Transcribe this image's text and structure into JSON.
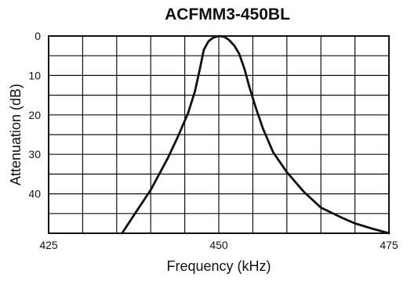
{
  "chart_data": {
    "type": "line",
    "title": "ACFMM3-450BL",
    "xlabel": "Frequency (kHz)",
    "ylabel": "Attenuation (dB)",
    "xlim": [
      425,
      475
    ],
    "ylim": [
      0,
      50
    ],
    "y_inverted": true,
    "grid": true,
    "x_gridlines": [
      425,
      430,
      435,
      440,
      445,
      450,
      455,
      460,
      465,
      470,
      475
    ],
    "y_gridlines": [
      0,
      5,
      10,
      15,
      20,
      25,
      30,
      35,
      40,
      45,
      50
    ],
    "x_ticks": [
      425,
      450,
      475
    ],
    "x_tick_labels": [
      "425",
      "450",
      "475"
    ],
    "y_ticks": [
      0,
      10,
      20,
      30,
      40
    ],
    "y_tick_labels": [
      "0",
      "10",
      "20",
      "30",
      "40"
    ],
    "series": [
      {
        "x": [
          435.8,
          437.5,
          440,
          442.5,
          444,
          445.5,
          446.5,
          447.2,
          447.8,
          448.5,
          449.2,
          450,
          450.8,
          451.5,
          452.3,
          453,
          453.8,
          454.5,
          455.5,
          456.5,
          458,
          460,
          462.5,
          465,
          468,
          470,
          472.5,
          475
        ],
        "y": [
          50,
          45.5,
          39,
          31,
          25.5,
          19.5,
          14,
          8.5,
          3.5,
          1.3,
          0.4,
          0,
          0.2,
          1.0,
          2.5,
          4.5,
          8.5,
          13,
          18.5,
          23.5,
          29.5,
          34.5,
          39.5,
          43.5,
          46,
          47.5,
          48.8,
          50
        ]
      }
    ],
    "line_color": "#111111",
    "grid_color": "#111111"
  }
}
